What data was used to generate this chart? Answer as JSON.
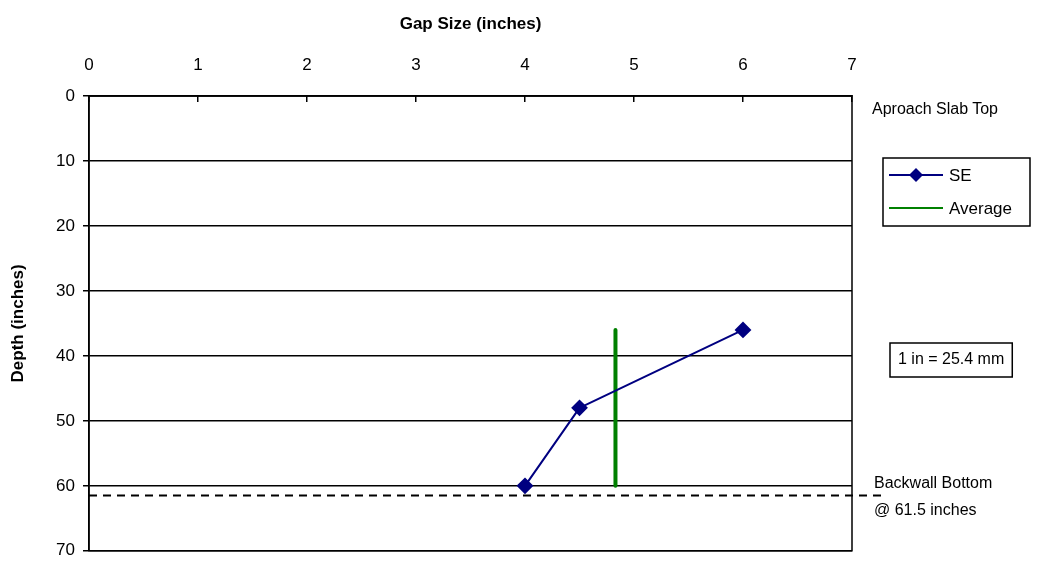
{
  "chart_data": {
    "type": "line",
    "xlabel": "Gap Size (inches)",
    "ylabel": "Depth (inches)",
    "xlim": [
      0,
      7
    ],
    "xticks": [
      0,
      1,
      2,
      3,
      4,
      5,
      6,
      7
    ],
    "ylim": [
      70,
      0
    ],
    "yticks": [
      0,
      10,
      20,
      30,
      40,
      50,
      60,
      70
    ],
    "grid": "y",
    "legend": "right",
    "series": [
      {
        "name": "SE",
        "color": "#000080",
        "x": [
          4,
          4.5,
          6
        ],
        "values": [
          60,
          48,
          36
        ],
        "marker": "diamond"
      },
      {
        "name": "Average",
        "color": "#008000",
        "x": [
          4.83,
          4.83
        ],
        "values": [
          36,
          60
        ],
        "marker": "none"
      }
    ],
    "ref_lines": [
      {
        "axis": "y",
        "value": 61.5,
        "label": "Backwall Bottom @ 61.5 inches",
        "color": "#000000",
        "line_style": "dashed"
      }
    ],
    "annotations": [
      "Aproach Slab Top",
      "1 in = 25.4 mm"
    ]
  }
}
